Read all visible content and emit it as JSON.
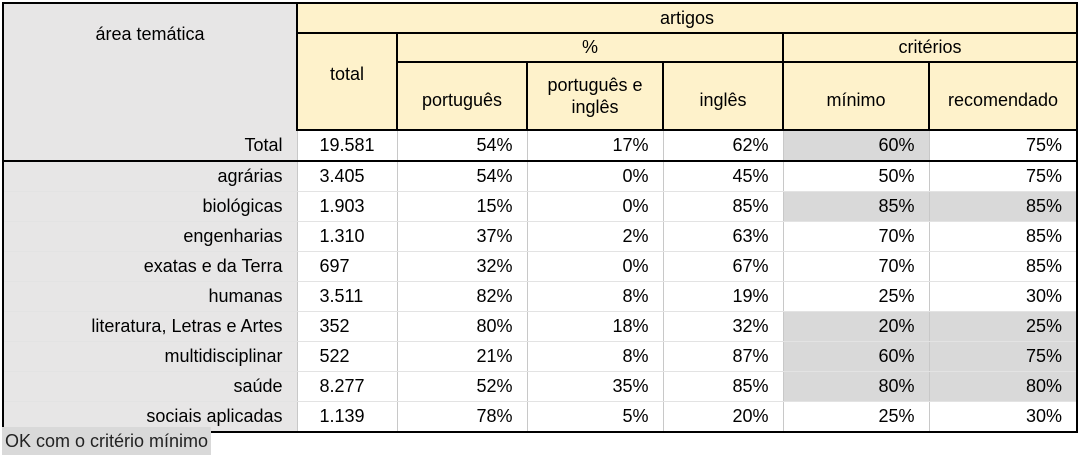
{
  "chart_data": {
    "type": "table",
    "header": {
      "area": "área temática",
      "articles": "artigos",
      "total": "total",
      "percent": "%",
      "criteria": "critérios",
      "portuguese": "português",
      "portuguese_english": "português e inglês",
      "english": "inglês",
      "minimum": "mínimo",
      "recommended": "recomendado"
    },
    "total_row": {
      "area": "Total",
      "total": "19.581",
      "portuguese": "54%",
      "portuguese_english": "17%",
      "english": "62%",
      "minimum": "60%",
      "recommended": "75%",
      "minimum_ok": true,
      "recommended_ok": false
    },
    "rows": [
      {
        "area": "agrárias",
        "total": "3.405",
        "portuguese": "54%",
        "portuguese_english": "0%",
        "english": "45%",
        "minimum": "50%",
        "recommended": "75%",
        "minimum_ok": false,
        "recommended_ok": false
      },
      {
        "area": "biológicas",
        "total": "1.903",
        "portuguese": "15%",
        "portuguese_english": "0%",
        "english": "85%",
        "minimum": "85%",
        "recommended": "85%",
        "minimum_ok": true,
        "recommended_ok": true
      },
      {
        "area": "engenharias",
        "total": "1.310",
        "portuguese": "37%",
        "portuguese_english": "2%",
        "english": "63%",
        "minimum": "70%",
        "recommended": "85%",
        "minimum_ok": false,
        "recommended_ok": false
      },
      {
        "area": "exatas e da Terra",
        "total": "697",
        "portuguese": "32%",
        "portuguese_english": "0%",
        "english": "67%",
        "minimum": "70%",
        "recommended": "85%",
        "minimum_ok": false,
        "recommended_ok": false
      },
      {
        "area": "humanas",
        "total": "3.511",
        "portuguese": "82%",
        "portuguese_english": "8%",
        "english": "19%",
        "minimum": "25%",
        "recommended": "30%",
        "minimum_ok": false,
        "recommended_ok": false
      },
      {
        "area": "literatura, Letras e Artes",
        "total": "352",
        "portuguese": "80%",
        "portuguese_english": "18%",
        "english": "32%",
        "minimum": "20%",
        "recommended": "25%",
        "minimum_ok": true,
        "recommended_ok": true
      },
      {
        "area": "multidisciplinar",
        "total": "522",
        "portuguese": "21%",
        "portuguese_english": "8%",
        "english": "87%",
        "minimum": "60%",
        "recommended": "75%",
        "minimum_ok": true,
        "recommended_ok": true
      },
      {
        "area": "saúde",
        "total": "8.277",
        "portuguese": "52%",
        "portuguese_english": "35%",
        "english": "85%",
        "minimum": "80%",
        "recommended": "80%",
        "minimum_ok": true,
        "recommended_ok": true
      },
      {
        "area": "sociais aplicadas",
        "total": "1.139",
        "portuguese": "78%",
        "portuguese_english": "5%",
        "english": "20%",
        "minimum": "25%",
        "recommended": "30%",
        "minimum_ok": false,
        "recommended_ok": false
      }
    ],
    "legend": "OK com o critério mínimo"
  },
  "colors": {
    "header_bg": "#fef2cb",
    "label_bg": "#e7e6e6",
    "ok_highlight": "#d9d9d9"
  }
}
